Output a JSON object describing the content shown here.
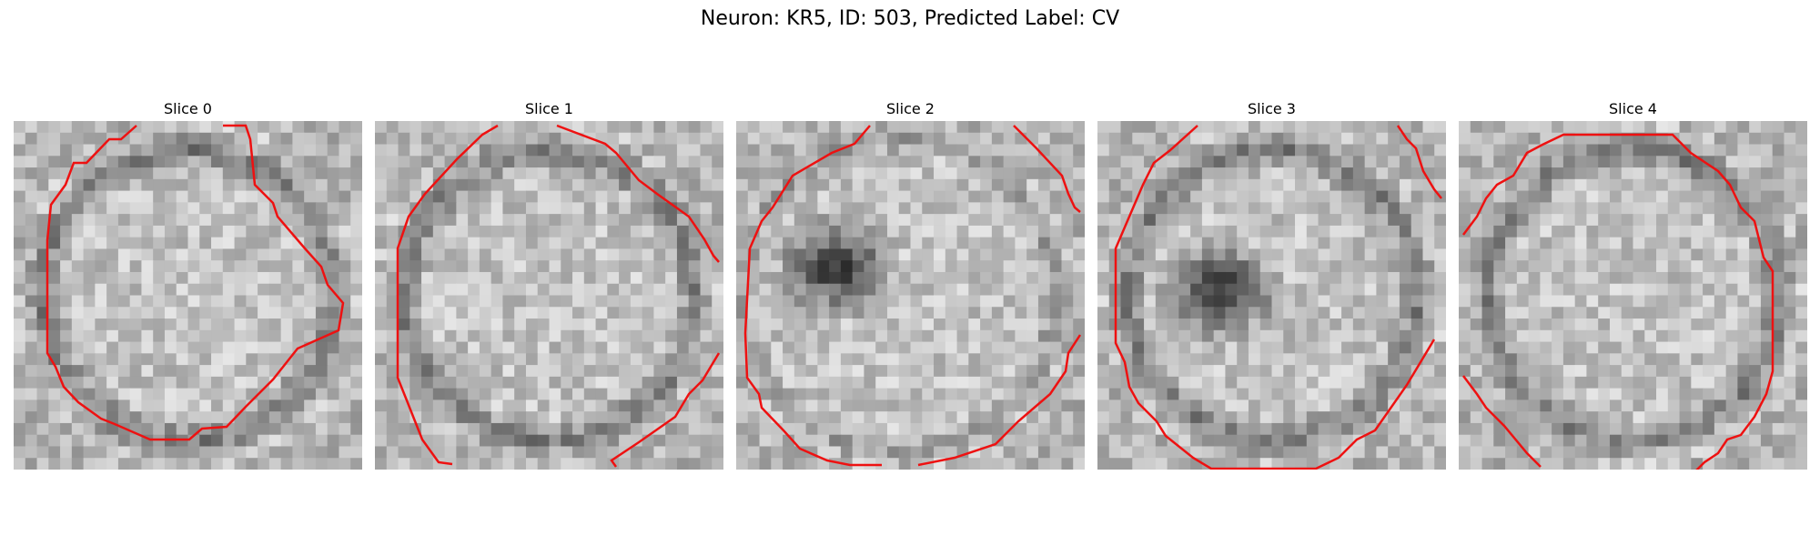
{
  "figure": {
    "title": "Neuron: KR5, ID: 503, Predicted Label: CV"
  },
  "slices": [
    {
      "title": "Slice 0",
      "dark_blob": false,
      "ring": true
    },
    {
      "title": "Slice 1",
      "dark_blob": false,
      "ring": true
    },
    {
      "title": "Slice 2",
      "dark_blob": true,
      "ring": false
    },
    {
      "title": "Slice 3",
      "dark_blob": true,
      "ring": true
    },
    {
      "title": "Slice 4",
      "dark_blob": false,
      "ring": true
    }
  ],
  "colors": {
    "contour": "#ee1111",
    "background": "#ffffff"
  }
}
